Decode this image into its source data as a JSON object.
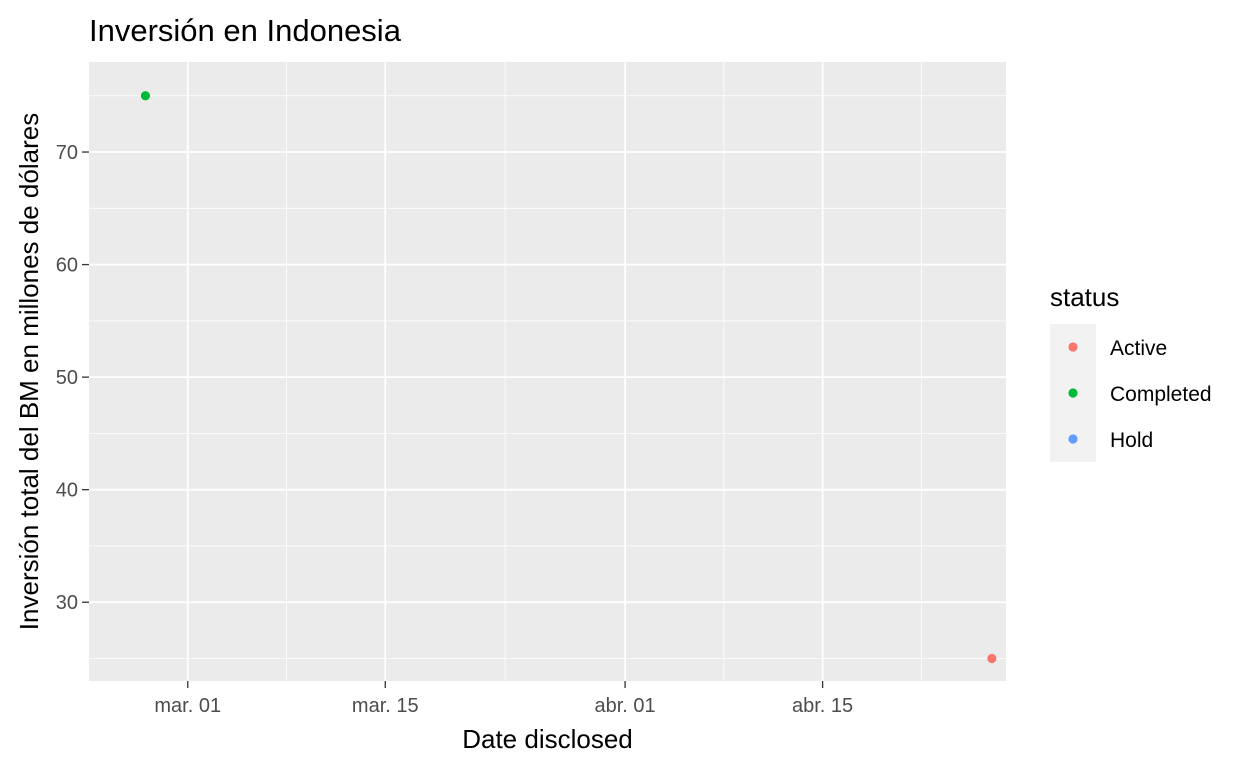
{
  "chart_data": {
    "type": "scatter",
    "title": "Inversión en Indonesia",
    "xlabel": "Date disclosed",
    "ylabel": "Inversión total del BM en millones de dólares",
    "x_axis": {
      "kind": "date",
      "range": [
        "2022-02-22",
        "2022-04-28"
      ],
      "ticks": [
        {
          "date": "2022-03-01",
          "label": "mar. 01"
        },
        {
          "date": "2022-03-15",
          "label": "mar. 15"
        },
        {
          "date": "2022-04-01",
          "label": "abr. 01"
        },
        {
          "date": "2022-04-15",
          "label": "abr. 15"
        }
      ]
    },
    "y_axis": {
      "range": [
        23,
        78
      ],
      "ticks": [
        30,
        40,
        50,
        60,
        70
      ]
    },
    "grid": true,
    "legend": {
      "title": "status",
      "position": "right",
      "entries": [
        {
          "label": "Active",
          "color": "#F8766D"
        },
        {
          "label": "Completed",
          "color": "#00BA38"
        },
        {
          "label": "Hold",
          "color": "#619CFF"
        }
      ]
    },
    "series": [
      {
        "name": "Active",
        "color": "#F8766D",
        "points": [
          {
            "x": "2022-04-27",
            "y": 25
          }
        ]
      },
      {
        "name": "Completed",
        "color": "#00BA38",
        "points": [
          {
            "x": "2022-02-26",
            "y": 75
          }
        ]
      },
      {
        "name": "Hold",
        "color": "#619CFF",
        "points": []
      }
    ],
    "panel_color": "#EBEBEB",
    "grid_color": "#FFFFFF"
  }
}
